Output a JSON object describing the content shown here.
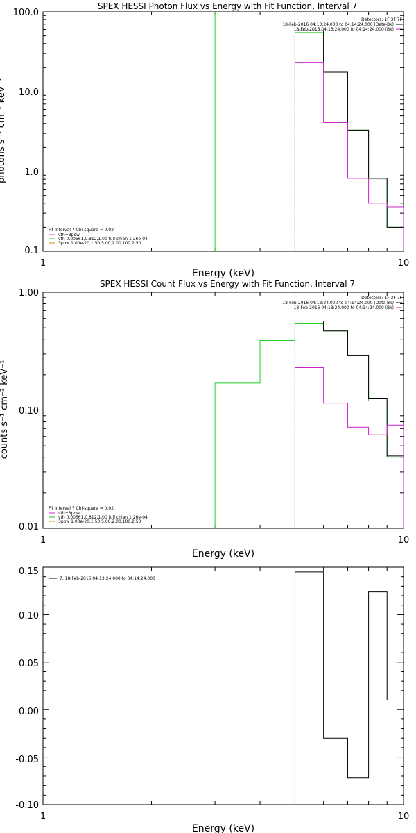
{
  "chart_data": [
    {
      "type": "line",
      "title": "SPEX HESSI Photon Flux vs Energy with Fit Function, Interval 7",
      "xlabel": "Energy (keV)",
      "ylabel": "photons s⁻¹ cm⁻² keV⁻¹",
      "xscale": "log",
      "yscale": "log",
      "xlim": [
        1,
        10
      ],
      "ylim": [
        0.1,
        100
      ],
      "xticks": [
        "1",
        "10"
      ],
      "yticks": [
        "100.0",
        "10.0",
        "1.0",
        "0.1"
      ],
      "legend_top_right": [
        "Detectors: 1F 3F 7F",
        "18-Feb-2016 04:13:24.000 to 04:14:24.000 (Data-Bk)",
        "18-Feb-2016 04:13:24.000 to 04:14:24.000 (Bk)"
      ],
      "legend_bottom_left": [
        "Fit Interval 7   Chi-square = 0.02",
        "vth+3pow",
        "vth 0.00561,0.812,1.00   full chian 1.26e-04",
        "3pow 1.00e-20,1.50,5.00,2.00,100,2.50"
      ],
      "vlines": [
        {
          "x": 3.0,
          "color": "#22cc22",
          "style": "solid"
        },
        {
          "x": 5.0,
          "color": "#000000",
          "style": "dotted"
        }
      ],
      "series": [
        {
          "color": "#22cc22",
          "edges": [
            5,
            6,
            7,
            8,
            9,
            10
          ],
          "values": [
            55,
            17.5,
            3.3,
            0.78,
            0.2
          ]
        },
        {
          "color": "#000000",
          "edges": [
            5,
            6,
            7,
            8,
            9,
            10
          ],
          "values": [
            58,
            17.5,
            3.3,
            0.82,
            0.2
          ]
        },
        {
          "color": "#cc22cc",
          "edges": [
            5,
            6,
            7,
            8,
            9,
            10
          ],
          "values": [
            23,
            4.1,
            0.82,
            0.4,
            0.36
          ]
        }
      ]
    },
    {
      "type": "line",
      "title": "SPEX HESSI Count Flux vs Energy with Fit Function, Interval 7",
      "xlabel": "Energy (keV)",
      "ylabel": "counts s⁻¹ cm⁻² keV⁻¹",
      "xscale": "log",
      "yscale": "log",
      "xlim": [
        1,
        10
      ],
      "ylim": [
        0.01,
        1
      ],
      "xticks": [
        "1",
        "10"
      ],
      "yticks": [
        "1.00",
        "0.10",
        "0.01"
      ],
      "legend_top_right": [
        "Detectors: 1F 3F 7F",
        "18-Feb-2016 04:13:24.000 to 04:14:24.000 (Data-Bk)",
        "18-Feb-2016 04:13:24.000 to 04:14:24.000 (Bk)"
      ],
      "legend_bottom_left": [
        "Fit Interval 7   Chi-square = 0.02",
        "vth+3pow",
        "vth 0.00561,0.812,1.00   full chian 1.26e-04",
        "3pow 1.00e-20,1.50,5.00,2.00,100,2.50"
      ],
      "vlines": [
        {
          "x": 5.0,
          "color": "#000000",
          "style": "dotted"
        }
      ],
      "series": [
        {
          "color": "#22cc22",
          "edges": [
            3,
            4,
            5,
            6,
            7,
            8,
            9,
            10
          ],
          "values": [
            0.17,
            0.39,
            0.54,
            0.47,
            0.29,
            0.12,
            0.04
          ]
        },
        {
          "color": "#000000",
          "edges": [
            5,
            6,
            7,
            8,
            9,
            10
          ],
          "values": [
            0.57,
            0.47,
            0.29,
            0.125,
            0.041
          ]
        },
        {
          "color": "#cc22cc",
          "edges": [
            5,
            6,
            7,
            8,
            9,
            10
          ],
          "values": [
            0.23,
            0.115,
            0.072,
            0.062,
            0.075
          ]
        }
      ]
    },
    {
      "type": "line",
      "title": "",
      "xlabel": "Energy (keV)",
      "ylabel": "",
      "xscale": "log",
      "yscale": "linear",
      "xlim": [
        1,
        10
      ],
      "ylim": [
        -0.1,
        0.15
      ],
      "xticks": [
        "1",
        "10"
      ],
      "yticks": [
        "0.15",
        "0.10",
        "0.05",
        "0.00",
        "-0.05",
        "-0.10"
      ],
      "legend_top_left": [
        "7. 18-Feb-2016 04:13:24.000 to 04:14:24.000"
      ],
      "series": [
        {
          "color": "#000000",
          "edges": [
            5,
            6,
            7,
            8,
            9,
            10
          ],
          "values": [
            0.145,
            -0.03,
            -0.072,
            0.124,
            0.01
          ]
        }
      ]
    }
  ]
}
